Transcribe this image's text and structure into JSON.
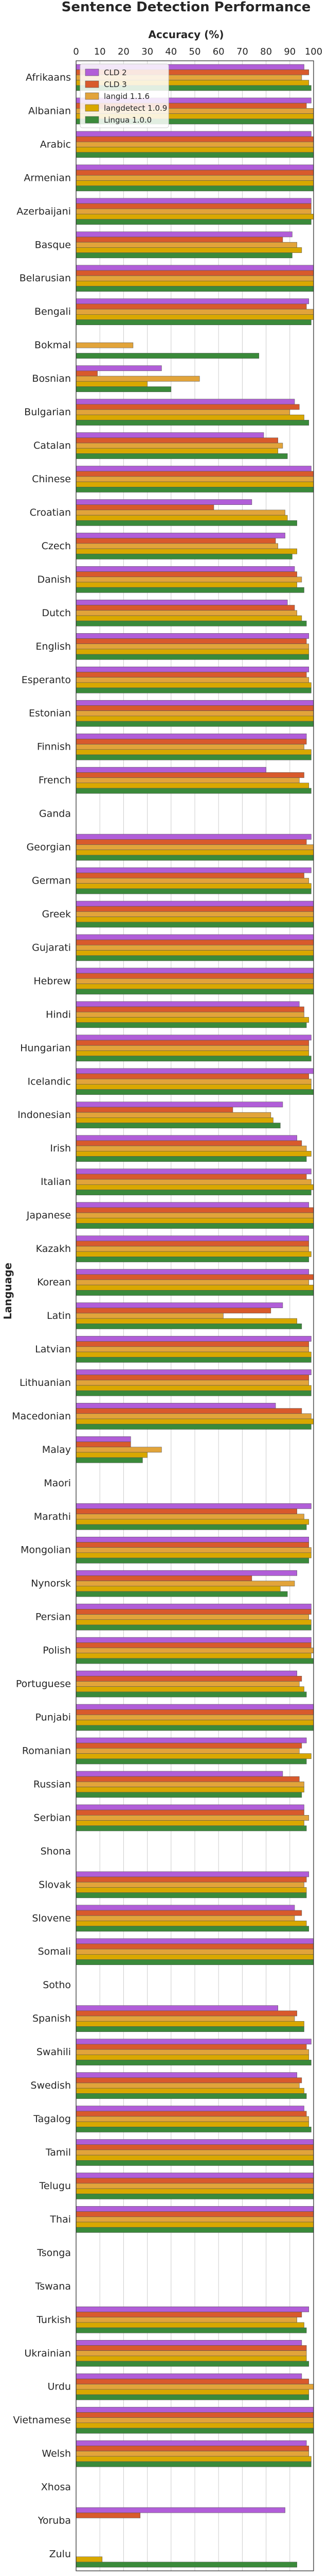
{
  "chart_data": {
    "type": "bar",
    "orientation": "horizontal",
    "title": "Sentence Detection Performance",
    "xlabel": "Accuracy (%)",
    "ylabel": "Language",
    "xlim": [
      0,
      100
    ],
    "xticks": [
      "0",
      "10",
      "20",
      "30",
      "40",
      "50",
      "60",
      "70",
      "80",
      "90",
      "100"
    ],
    "xaxis_position": "top",
    "grid": true,
    "legend_position": "top-left",
    "categories": [
      "Afrikaans",
      "Albanian",
      "Arabic",
      "Armenian",
      "Azerbaijani",
      "Basque",
      "Belarusian",
      "Bengali",
      "Bokmal",
      "Bosnian",
      "Bulgarian",
      "Catalan",
      "Chinese",
      "Croatian",
      "Czech",
      "Danish",
      "Dutch",
      "English",
      "Esperanto",
      "Estonian",
      "Finnish",
      "French",
      "Ganda",
      "Georgian",
      "German",
      "Greek",
      "Gujarati",
      "Hebrew",
      "Hindi",
      "Hungarian",
      "Icelandic",
      "Indonesian",
      "Irish",
      "Italian",
      "Japanese",
      "Kazakh",
      "Korean",
      "Latin",
      "Latvian",
      "Lithuanian",
      "Macedonian",
      "Malay",
      "Maori",
      "Marathi",
      "Mongolian",
      "Nynorsk",
      "Persian",
      "Polish",
      "Portuguese",
      "Punjabi",
      "Romanian",
      "Russian",
      "Serbian",
      "Shona",
      "Slovak",
      "Slovene",
      "Somali",
      "Sotho",
      "Spanish",
      "Swahili",
      "Swedish",
      "Tagalog",
      "Tamil",
      "Telugu",
      "Thai",
      "Tsonga",
      "Tswana",
      "Turkish",
      "Ukrainian",
      "Urdu",
      "Vietnamese",
      "Welsh",
      "Xhosa",
      "Yoruba",
      "Zulu"
    ],
    "series": [
      {
        "name": "CLD 2",
        "color": "#b15ed8",
        "values": [
          96,
          99,
          99,
          100,
          99,
          91,
          100,
          98,
          null,
          36,
          92,
          79,
          99,
          74,
          88,
          92,
          89,
          98,
          98,
          100,
          97,
          80,
          null,
          99,
          99,
          100,
          100,
          100,
          94,
          99,
          100,
          87,
          93,
          99,
          98,
          98,
          98,
          87,
          99,
          99,
          84,
          23,
          null,
          99,
          98,
          93,
          99,
          99,
          93,
          100,
          97,
          87,
          96,
          null,
          98,
          92,
          100,
          null,
          85,
          99,
          93,
          96,
          100,
          100,
          100,
          null,
          null,
          98,
          95,
          95,
          100,
          97,
          null,
          88,
          null
        ]
      },
      {
        "name": "CLD 3",
        "color": "#d85a2c",
        "values": [
          98,
          97,
          100,
          100,
          99,
          87,
          100,
          97,
          null,
          9,
          94,
          85,
          100,
          58,
          84,
          93,
          92,
          97,
          97,
          100,
          97,
          96,
          null,
          97,
          96,
          100,
          100,
          100,
          96,
          98,
          98,
          66,
          95,
          97,
          100,
          98,
          100,
          82,
          98,
          98,
          95,
          23,
          null,
          93,
          98,
          74,
          99,
          99,
          95,
          100,
          95,
          94,
          96,
          null,
          97,
          95,
          100,
          null,
          93,
          97,
          95,
          97,
          100,
          100,
          100,
          null,
          null,
          95,
          97,
          98,
          100,
          98,
          null,
          27,
          null
        ]
      },
      {
        "name": "langid 1.1.6",
        "color": "#e2a43a",
        "values": [
          95,
          100,
          100,
          100,
          99,
          93,
          100,
          100,
          24,
          52,
          90,
          87,
          100,
          88,
          85,
          95,
          93,
          98,
          98,
          100,
          96,
          94,
          null,
          100,
          98,
          100,
          100,
          100,
          96,
          98,
          99,
          82,
          97,
          99,
          100,
          98,
          98,
          62,
          98,
          98,
          99,
          36,
          null,
          96,
          99,
          92,
          98,
          100,
          94,
          100,
          94,
          96,
          98,
          null,
          96,
          92,
          100,
          null,
          92,
          98,
          94,
          98,
          100,
          100,
          100,
          null,
          null,
          93,
          97,
          100,
          100,
          98,
          null,
          null,
          null
        ]
      },
      {
        "name": "langdetect 1.0.9",
        "color": "#d9a800",
        "values": [
          98,
          100,
          100,
          100,
          100,
          95,
          100,
          100,
          null,
          30,
          96,
          85,
          100,
          89,
          93,
          93,
          95,
          98,
          99,
          100,
          99,
          98,
          null,
          100,
          99,
          100,
          100,
          100,
          98,
          98,
          99,
          83,
          99,
          100,
          100,
          99,
          100,
          93,
          99,
          99,
          100,
          30,
          null,
          98,
          99,
          86,
          99,
          99,
          96,
          100,
          99,
          96,
          96,
          null,
          97,
          97,
          100,
          null,
          96,
          98,
          96,
          98,
          100,
          100,
          100,
          null,
          null,
          96,
          97,
          98,
          100,
          99,
          null,
          null,
          11
        ]
      },
      {
        "name": "Lingua 1.0.0",
        "color": "#3a8a3a",
        "values": [
          99,
          100,
          100,
          100,
          99,
          91,
          100,
          99,
          77,
          40,
          98,
          89,
          100,
          93,
          91,
          96,
          97,
          98,
          99,
          100,
          99,
          99,
          null,
          100,
          99,
          100,
          100,
          100,
          97,
          99,
          100,
          86,
          97,
          99,
          100,
          98,
          100,
          95,
          99,
          99,
          99,
          28,
          null,
          97,
          98,
          89,
          99,
          100,
          97,
          100,
          97,
          95,
          97,
          null,
          97,
          98,
          100,
          null,
          96,
          99,
          97,
          99,
          100,
          100,
          100,
          null,
          null,
          97,
          98,
          98,
          100,
          99,
          null,
          null,
          93
        ]
      }
    ]
  }
}
